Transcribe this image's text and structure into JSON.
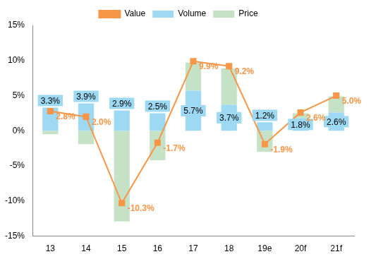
{
  "chart_data": {
    "type": "bar",
    "categories": [
      "13",
      "14",
      "15",
      "16",
      "17",
      "18",
      "19e",
      "20f",
      "21f"
    ],
    "series": [
      {
        "name": "Volume",
        "type": "bar",
        "color": "#9DD9F3",
        "values": [
          3.3,
          3.9,
          2.9,
          2.5,
          5.7,
          3.7,
          1.2,
          1.8,
          2.6
        ],
        "data_labels": true,
        "value_labels": [
          "3.3%",
          "3.9%",
          "2.9%",
          "2.5%",
          "5.7%",
          "3.7%",
          "1.2%",
          "1.8%",
          "2.6%"
        ]
      },
      {
        "name": "Price",
        "type": "bar",
        "color": "#C6E2C6",
        "values": [
          -0.5,
          -1.9,
          -12.9,
          -4.2,
          4.0,
          5.2,
          -3.0,
          0.7,
          2.3
        ]
      },
      {
        "name": "Value",
        "type": "line",
        "color": "#F79646",
        "marker": "square",
        "values": [
          2.8,
          2.0,
          -10.3,
          -1.7,
          9.9,
          9.2,
          -1.9,
          2.6,
          5.0
        ],
        "data_labels": true,
        "value_labels": [
          "2.8%",
          "2.0%",
          "-10.3%",
          "-1.7%",
          "9.9%",
          "9.2%",
          "-1.9%",
          "2.6%",
          "5.0%"
        ]
      }
    ],
    "stacked": true,
    "ylim": [
      -15,
      15
    ],
    "yticks": [
      {
        "value": -15,
        "label": "-15%"
      },
      {
        "value": -10,
        "label": "-10%"
      },
      {
        "value": -5,
        "label": "-5%"
      },
      {
        "value": 0,
        "label": "0%"
      },
      {
        "value": 5,
        "label": "5%"
      },
      {
        "value": 10,
        "label": "10%"
      },
      {
        "value": 15,
        "label": "15%"
      }
    ],
    "grid": false,
    "legend": "top"
  }
}
